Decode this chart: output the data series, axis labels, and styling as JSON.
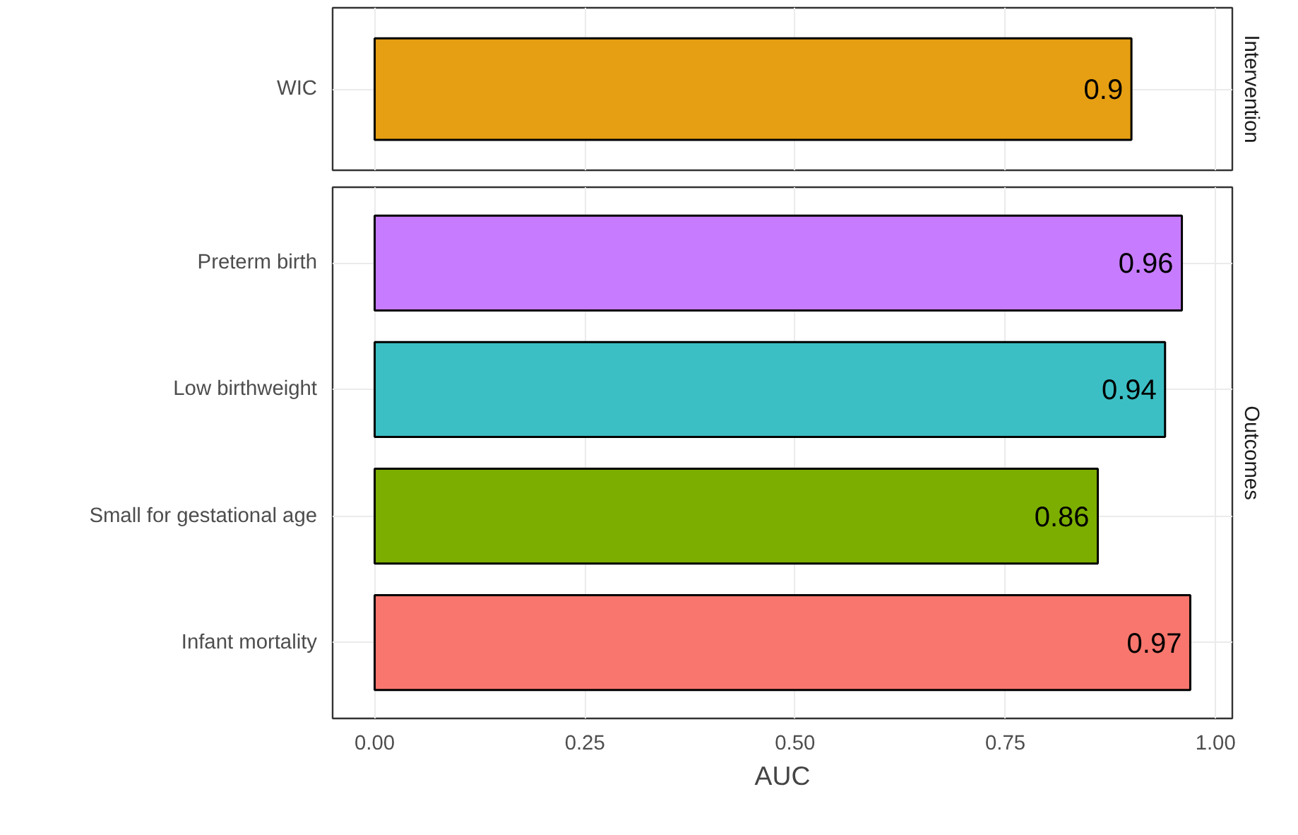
{
  "chart_data": [
    {
      "type": "bar",
      "orientation": "horizontal",
      "title": "Intervention",
      "categories": [
        "WIC"
      ],
      "values": [
        0.9
      ],
      "colors": [
        "#e69f12"
      ],
      "data_labels": true,
      "xlim": [
        -0.05,
        1.02
      ],
      "xticks": [
        {
          "value": 0,
          "label": null
        },
        {
          "value": 0.25,
          "label": null
        },
        {
          "value": 0.5,
          "label": null
        },
        {
          "value": 0.75,
          "label": null
        },
        {
          "value": 1,
          "label": null
        }
      ],
      "tick_labels": "y",
      "grid": true
    },
    {
      "type": "bar",
      "orientation": "horizontal",
      "title": "Outcomes",
      "xlabel": "AUC",
      "categories": [
        "Preterm birth",
        "Low birthweight",
        "Small for gestational age",
        "Infant mortality"
      ],
      "values": [
        0.96,
        0.94,
        0.86,
        0.97
      ],
      "colors": [
        "#c77cff",
        "#3bbfc4",
        "#7cae00",
        "#f8766d"
      ],
      "data_labels": true,
      "xlim": [
        -0.05,
        1.02
      ],
      "xticks": [
        {
          "value": 0,
          "label": "0.00"
        },
        {
          "value": 0.25,
          "label": "0.25"
        },
        {
          "value": 0.5,
          "label": "0.50"
        },
        {
          "value": 0.75,
          "label": "0.75"
        },
        {
          "value": 1,
          "label": "1.00"
        }
      ],
      "grid": true
    }
  ]
}
